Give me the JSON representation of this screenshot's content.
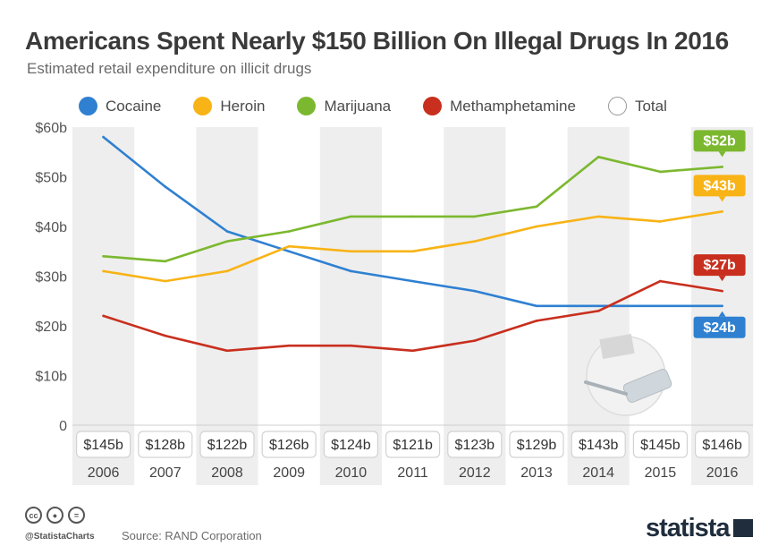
{
  "header": {
    "title": "Americans Spent Nearly $150 Billion On Illegal Drugs In 2016",
    "subtitle": "Estimated retail expenditure on illicit drugs"
  },
  "colors": {
    "cocaine": "#2f80d1",
    "heroin": "#f8b316",
    "marijuana": "#7cb82f",
    "methamphetamine": "#c82f1e",
    "total": "#ffffff",
    "band": "#eeeeee"
  },
  "chart_data": {
    "type": "line",
    "title": "Americans Spent Nearly $150 Billion On Illegal Drugs In 2016",
    "subtitle": "Estimated retail expenditure on illicit drugs",
    "x": [
      "2006",
      "2007",
      "2008",
      "2009",
      "2010",
      "2011",
      "2012",
      "2013",
      "2014",
      "2015",
      "2016"
    ],
    "ylim": [
      0,
      60
    ],
    "yticks": [
      "0",
      "$10b",
      "$20b",
      "$30b",
      "$40b",
      "$50b",
      "$60b"
    ],
    "grid": false,
    "legend_position": "top",
    "series": [
      {
        "name": "Cocaine",
        "color": "#2f80d1",
        "values": [
          58,
          48,
          39,
          35,
          31,
          29,
          27,
          24,
          24,
          24,
          24
        ],
        "end_label": "$24b"
      },
      {
        "name": "Heroin",
        "color": "#f8b316",
        "values": [
          31,
          29,
          31,
          36,
          35,
          35,
          37,
          40,
          42,
          41,
          43
        ],
        "end_label": "$43b"
      },
      {
        "name": "Marijuana",
        "color": "#7cb82f",
        "values": [
          34,
          33,
          37,
          39,
          42,
          42,
          42,
          44,
          54,
          51,
          52
        ],
        "end_label": "$52b"
      },
      {
        "name": "Methamphetamine",
        "color": "#c82f1e",
        "values": [
          22,
          18,
          15,
          16,
          16,
          15,
          17,
          21,
          23,
          29,
          27
        ],
        "end_label": "$27b"
      }
    ],
    "total": {
      "name": "Total",
      "values": [
        145,
        128,
        122,
        126,
        124,
        121,
        123,
        129,
        143,
        145,
        146
      ],
      "labels": [
        "$145b",
        "$128b",
        "$122b",
        "$126b",
        "$124b",
        "$121b",
        "$123b",
        "$129b",
        "$143b",
        "$145b",
        "$146b"
      ]
    }
  },
  "footer": {
    "cc_icons": [
      "cc-icon",
      "person-icon",
      "equal-icon"
    ],
    "handle": "@StatistaCharts",
    "source": "Source: RAND Corporation",
    "logo": "statista"
  }
}
